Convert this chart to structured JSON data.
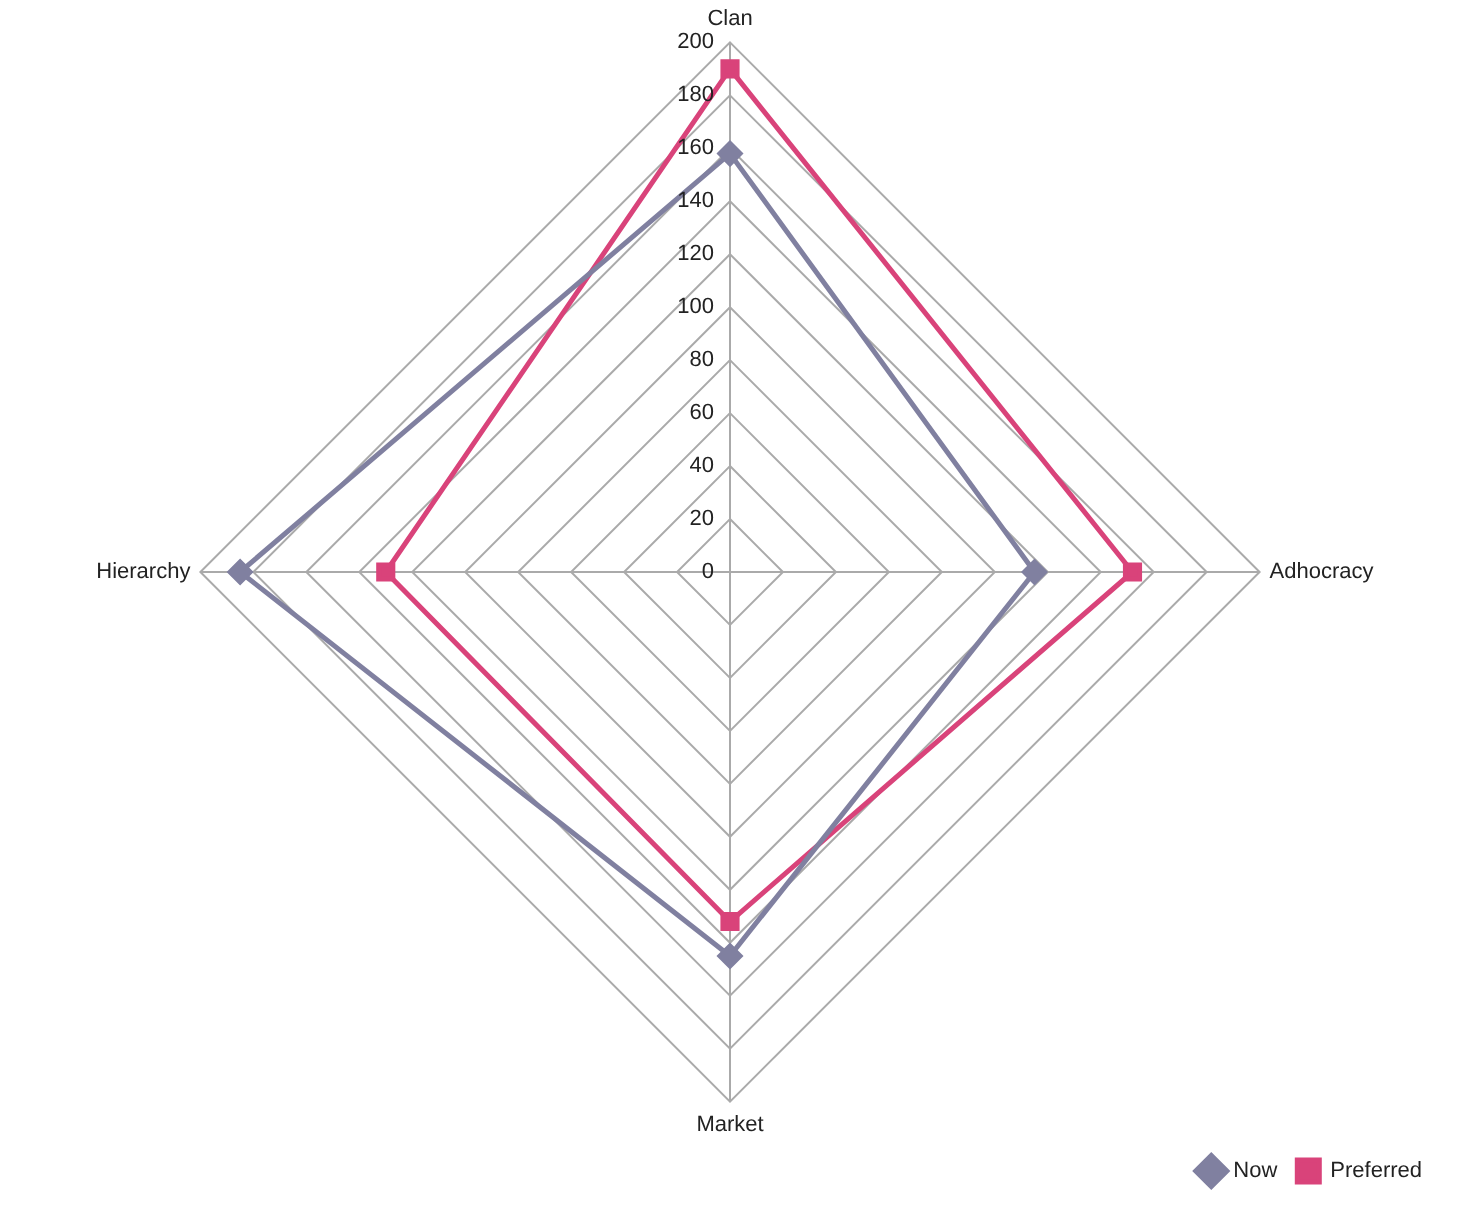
{
  "chart_data": {
    "type": "radar",
    "categories": [
      "Clan",
      "Adhocracy",
      "Market",
      "Hierarchy"
    ],
    "series": [
      {
        "name": "Now",
        "color": "#8080a0",
        "marker": "diamond",
        "values": [
          158,
          115,
          145,
          185
        ]
      },
      {
        "name": "Preferred",
        "color": "#d9437a",
        "marker": "square",
        "values": [
          190,
          152,
          132,
          130
        ]
      }
    ],
    "ylim": [
      0,
      200
    ],
    "yticks": [
      0,
      20,
      40,
      60,
      80,
      100,
      120,
      140,
      160,
      180,
      200
    ],
    "grid": true,
    "legend": "bottom right",
    "line_style": "solid"
  }
}
